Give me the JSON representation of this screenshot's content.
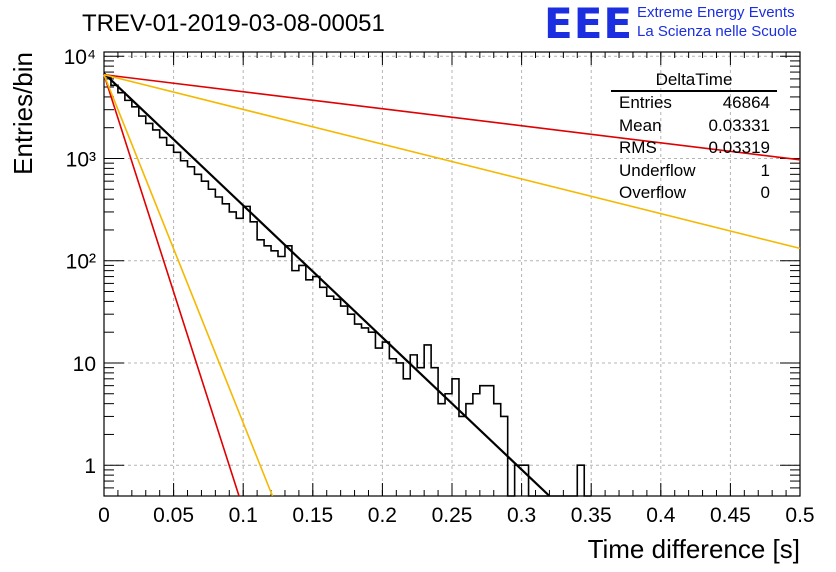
{
  "title": "TREV-01-2019-03-08-00051",
  "logo": {
    "mark": "EEE",
    "line1": "Extreme Energy Events",
    "line2": "La Scienza nelle Scuole"
  },
  "stats": {
    "title": "DeltaTime",
    "rows": [
      {
        "label": "Entries",
        "value": "46864"
      },
      {
        "label": "Mean",
        "value": "0.03331"
      },
      {
        "label": "RMS",
        "value": "0.03319"
      },
      {
        "label": "Underflow",
        "value": "1"
      },
      {
        "label": "Overflow",
        "value": "0"
      }
    ]
  },
  "chart_data": {
    "type": "line",
    "title": "TREV-01-2019-03-08-00051",
    "xlabel": "Time difference [s]",
    "ylabel": "Entries/bin",
    "xlim": [
      0,
      0.5
    ],
    "ylim": [
      0.5,
      11000
    ],
    "yscale": "log",
    "grid": true,
    "legend": "none",
    "xticks": [
      "0",
      "0.05",
      "0.1",
      "0.15",
      "0.2",
      "0.25",
      "0.3",
      "0.35",
      "0.4",
      "0.45",
      "0.5"
    ],
    "yticks": [
      {
        "value": 1,
        "label": "1"
      },
      {
        "value": 10,
        "label": "10"
      },
      {
        "value": 100,
        "label": "10²"
      },
      {
        "value": 1000,
        "label": "10³"
      },
      {
        "value": 10000,
        "label": "10⁴"
      }
    ],
    "histogram": {
      "color": "#000000",
      "bin_width": 0.005,
      "counts": [
        6300,
        5200,
        4400,
        3700,
        3200,
        2600,
        2200,
        1900,
        1600,
        1350,
        1150,
        950,
        830,
        700,
        600,
        500,
        420,
        360,
        300,
        260,
        340,
        240,
        160,
        140,
        125,
        110,
        140,
        80,
        90,
        65,
        70,
        55,
        45,
        42,
        36,
        30,
        24,
        22,
        20,
        14,
        16,
        11,
        10,
        7,
        12,
        9,
        15,
        9,
        4,
        5,
        7,
        3,
        4,
        5,
        6,
        6,
        4,
        3,
        0,
        1,
        1,
        0,
        0.5,
        0,
        0,
        0,
        0,
        0,
        1,
        0
      ]
    },
    "series": [
      {
        "color": "#000000",
        "width": 2.2,
        "x": [
          0,
          0.32
        ],
        "y": [
          6800,
          0.5
        ]
      },
      {
        "color": "#e00000",
        "width": 1.6,
        "x": [
          0,
          0.5
        ],
        "y": [
          6600,
          970
        ]
      },
      {
        "color": "#f5b800",
        "width": 1.6,
        "x": [
          0,
          0.5
        ],
        "y": [
          6600,
          132
        ]
      },
      {
        "color": "#e00000",
        "width": 1.6,
        "x": [
          0,
          0.097
        ],
        "y": [
          6600,
          0.5
        ]
      },
      {
        "color": "#f5b800",
        "width": 1.6,
        "x": [
          0,
          0.121
        ],
        "y": [
          6600,
          0.5
        ]
      }
    ]
  }
}
